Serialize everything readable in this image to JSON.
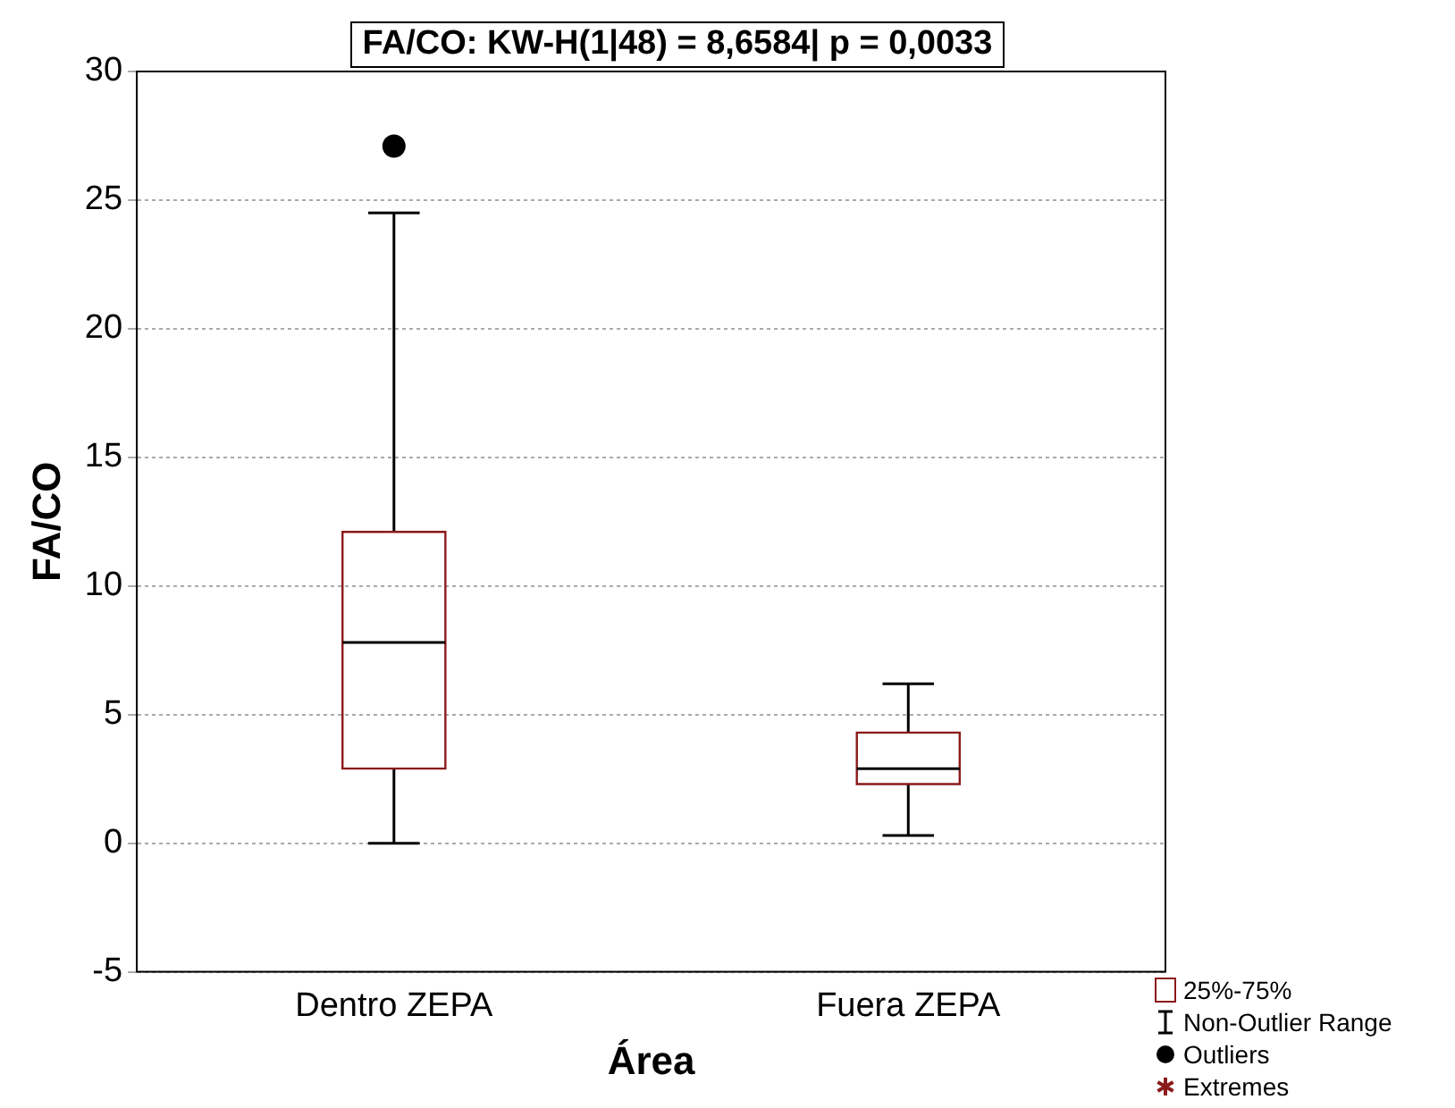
{
  "chart_data": {
    "type": "box",
    "title": "FA/CO:  KW-H(1|48) = 8,6584| p = 0,0033",
    "xlabel": "Área",
    "ylabel": "FA/CO",
    "categories": [
      "Dentro ZEPA",
      "Fuera ZEPA"
    ],
    "boxes": [
      {
        "low": 0,
        "q1": 2.9,
        "median": 7.8,
        "q3": 12.1,
        "high": 24.5,
        "outliers": [
          27.1
        ]
      },
      {
        "low": 0.3,
        "q1": 2.3,
        "median": 2.9,
        "q3": 4.3,
        "high": 6.2
      }
    ],
    "color": "#8b1a1a",
    "ylim": [
      -5,
      30
    ],
    "yticks": [
      -5,
      0,
      5,
      10,
      15,
      20,
      25,
      30
    ],
    "grid": "y",
    "legend": false,
    "annotations": [
      "25%-75%",
      "Non-Outlier Range",
      "Outliers",
      "Extremes"
    ]
  }
}
